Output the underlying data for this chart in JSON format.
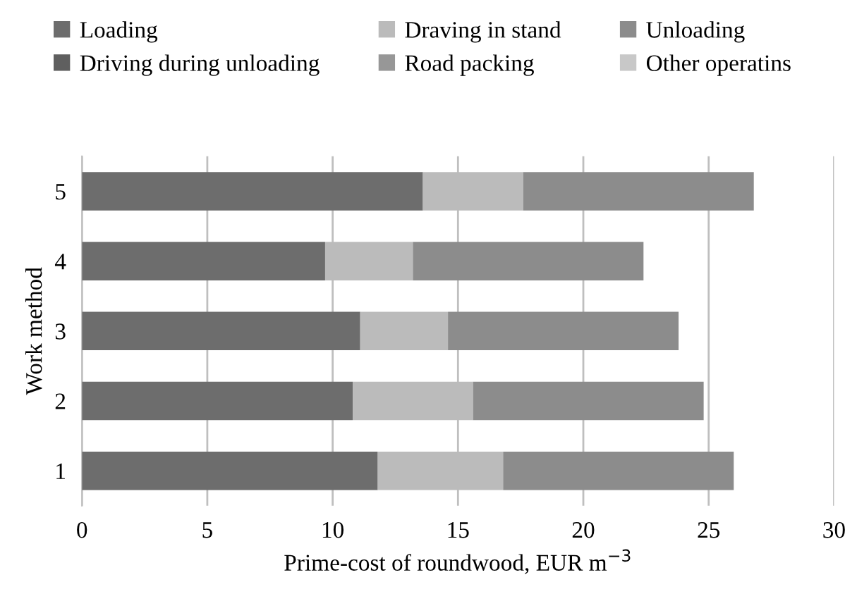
{
  "chart_data": {
    "type": "bar",
    "orientation": "horizontal",
    "stacked": true,
    "categories": [
      "5",
      "4",
      "3",
      "2",
      "1"
    ],
    "ylabel": "Work method",
    "xlabel": "Prime-cost of roundwood, EUR m$^{−3}$",
    "xlim": [
      0,
      30
    ],
    "xticks": [
      0,
      5,
      10,
      15,
      20,
      25,
      30
    ],
    "grid": "x",
    "legend": "top",
    "series": [
      {
        "name": "Loading",
        "color": "#6d6d6d",
        "values": [
          13.6,
          9.7,
          11.1,
          10.8,
          11.8
        ]
      },
      {
        "name": "Draving in stand",
        "color": "#bbbbbb",
        "values": [
          4.0,
          3.5,
          3.5,
          4.8,
          5.0
        ]
      },
      {
        "name": "Unloading",
        "color": "#8c8c8c",
        "values": [
          9.2,
          9.2,
          9.2,
          9.2,
          9.2
        ]
      },
      {
        "name": "Driving during unloading",
        "color": "#5f5f5f",
        "values": [
          0,
          0,
          0,
          0,
          0
        ]
      },
      {
        "name": "Road packing",
        "color": "#979797",
        "values": [
          0,
          0,
          0,
          0,
          0
        ]
      },
      {
        "name": "Other operatins",
        "color": "#c8c8c8",
        "values": [
          0,
          0,
          0,
          0,
          0
        ]
      }
    ]
  }
}
